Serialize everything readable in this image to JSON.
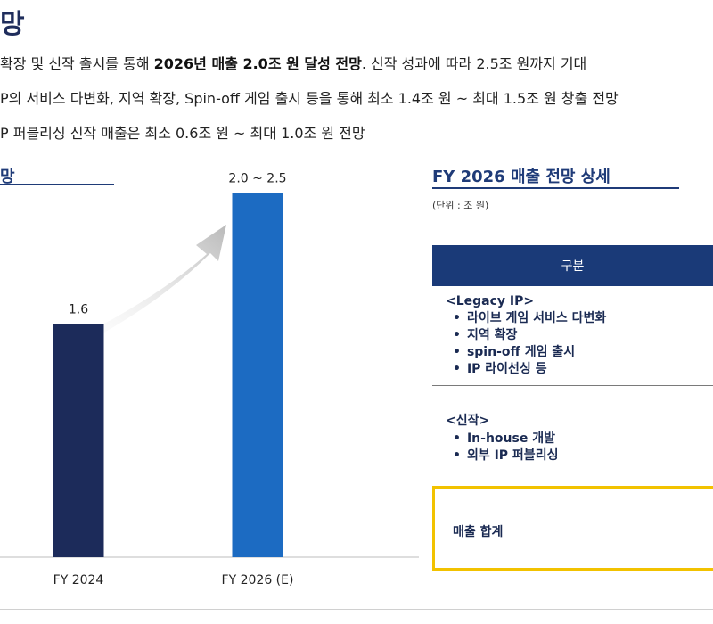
{
  "header": {
    "title": "망"
  },
  "bullets": [
    {
      "pre": "확장 및 신작 출시를 통해 ",
      "bold": "2026년 매출 2.0조 원 달성 전망",
      "post": ". 신작 성과에 따라 2.5조 원까지 기대"
    },
    {
      "text": "P의 서비스 다변화, 지역 확장, Spin-off 게임 출시 등을 통해  최소 1.4조 원 ~ 최대 1.5조 원 창출 전망"
    },
    {
      "text": "P 퍼블리싱 신작 매출은 최소 0.6조 원 ~ 최대 1.0조 원 전망"
    }
  ],
  "left_section": {
    "title": "망"
  },
  "right_section": {
    "title": "FY 2026 매출 전망 상세",
    "unit": "(단위 : 조 원)",
    "table_header": "구분",
    "groups": [
      {
        "head": "<Legacy IP>",
        "items": [
          "라이브 게임 서비스 다변화",
          "지역 확장",
          "spin-off 게임 출시",
          "IP 라이선싱 등"
        ]
      },
      {
        "head": "<신작>",
        "items": [
          "In-house 개발",
          "외부 IP 퍼블리싱"
        ]
      }
    ],
    "total_label": "매출 합계"
  },
  "chart_data": {
    "type": "bar",
    "title": "",
    "xlabel": "",
    "ylabel": "",
    "categories": [
      "FY 2024",
      "FY 2026 (E)"
    ],
    "values": [
      1.6,
      2.5
    ],
    "data_labels": [
      "1.6",
      "2.0 ~ 2.5"
    ],
    "ylim": [
      0,
      3.2
    ],
    "grid": false,
    "colors": [
      "#1c2b5a",
      "#1c6bc2"
    ]
  }
}
